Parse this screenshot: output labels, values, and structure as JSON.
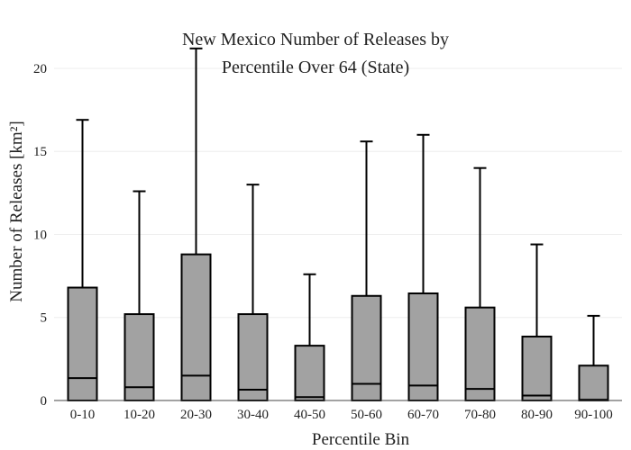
{
  "chart_data": {
    "type": "box",
    "title_lines": [
      "New Mexico Number of Releases by",
      "Percentile Over 64 (State)"
    ],
    "xlabel": "Percentile Bin",
    "ylabel": "Number of Releases  [km²]",
    "ylim": [
      0,
      21.3
    ],
    "yticks": [
      0,
      5,
      10,
      15,
      20
    ],
    "grid": true,
    "categories": [
      "0-10",
      "10-20",
      "20-30",
      "30-40",
      "40-50",
      "50-60",
      "60-70",
      "70-80",
      "80-90",
      "90-100"
    ],
    "boxes": [
      {
        "min": 0,
        "q1": 0,
        "median": 1.35,
        "q3": 6.8,
        "max": 16.9
      },
      {
        "min": 0,
        "q1": 0,
        "median": 0.8,
        "q3": 5.2,
        "max": 12.6
      },
      {
        "min": 0,
        "q1": 0,
        "median": 1.5,
        "q3": 8.8,
        "max": 21.2
      },
      {
        "min": 0,
        "q1": 0,
        "median": 0.65,
        "q3": 5.2,
        "max": 13.0
      },
      {
        "min": 0,
        "q1": 0,
        "median": 0.2,
        "q3": 3.3,
        "max": 7.6
      },
      {
        "min": 0,
        "q1": 0,
        "median": 1.0,
        "q3": 6.3,
        "max": 15.6
      },
      {
        "min": 0,
        "q1": 0,
        "median": 0.9,
        "q3": 6.45,
        "max": 16.0
      },
      {
        "min": 0,
        "q1": 0,
        "median": 0.7,
        "q3": 5.6,
        "max": 14.0
      },
      {
        "min": 0,
        "q1": 0,
        "median": 0.3,
        "q3": 3.85,
        "max": 9.4
      },
      {
        "min": 0,
        "q1": 0,
        "median": 0.05,
        "q3": 2.1,
        "max": 5.1
      }
    ],
    "box_color": "#a2a2a2",
    "line_color": "#000000",
    "grid_color": "#eeeeee",
    "axis_color": "#444444"
  }
}
